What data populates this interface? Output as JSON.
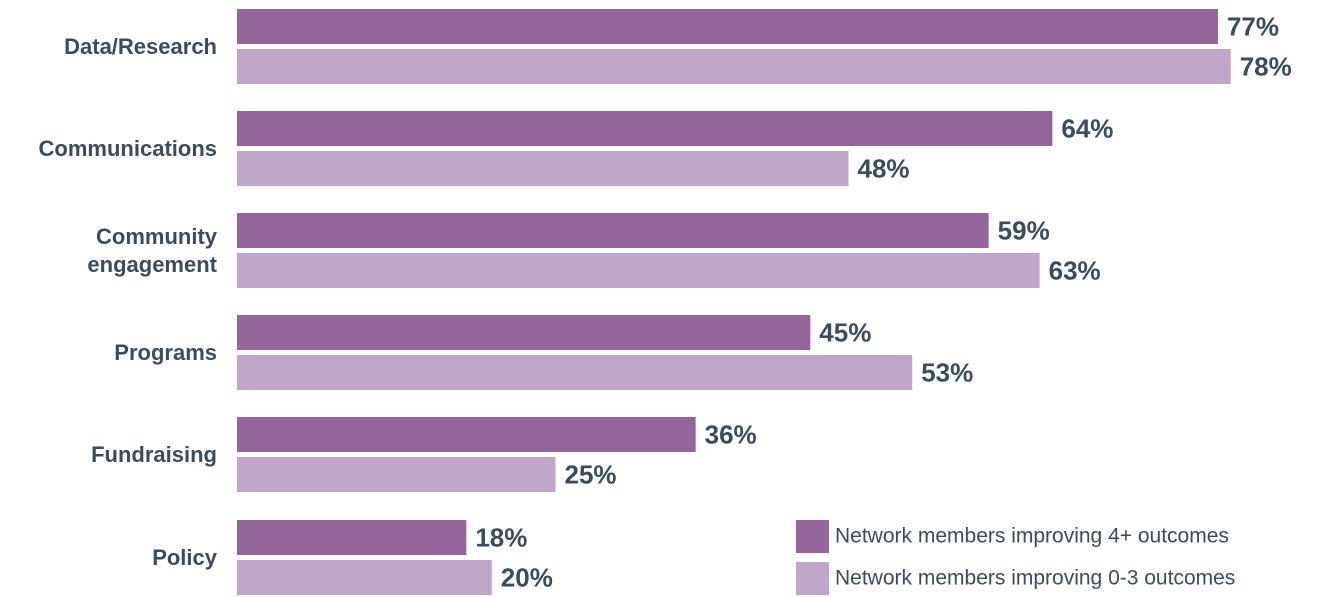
{
  "chart_data": {
    "type": "bar",
    "orientation": "horizontal",
    "categories": [
      "Data/Research",
      "Communications",
      "Community engagement",
      "Programs",
      "Fundraising",
      "Policy"
    ],
    "series": [
      {
        "name": "Network members improving 4+ outcomes",
        "color": "#93679a",
        "values": [
          77,
          64,
          59,
          45,
          36,
          18
        ],
        "value_labels": [
          "77%",
          "64%",
          "59%",
          "45%",
          "36%",
          "18%"
        ]
      },
      {
        "name": "Network members improving 0-3 outcomes",
        "color": "#c0a7c8",
        "values": [
          78,
          48,
          63,
          53,
          25,
          20
        ],
        "value_labels": [
          "78%",
          "48%",
          "63%",
          "53%",
          "25%",
          "20%"
        ]
      }
    ],
    "xlim": [
      0,
      100
    ],
    "legend": "bottom-right"
  }
}
